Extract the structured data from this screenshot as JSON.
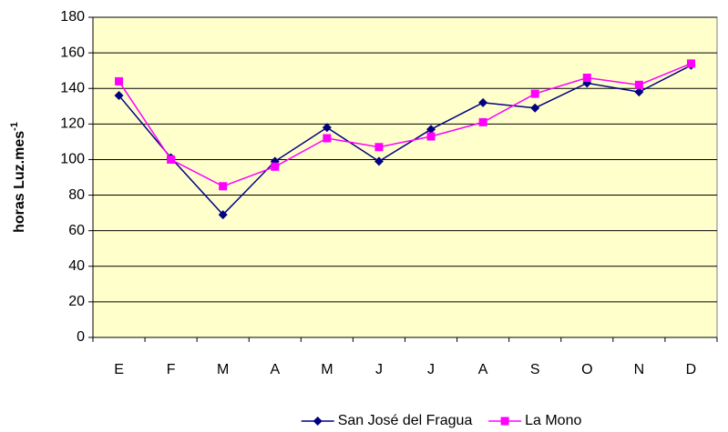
{
  "chart_data": {
    "type": "line",
    "y_label": "horas Luz.mes",
    "y_label_sup": "-1",
    "categories": [
      "E",
      "F",
      "M",
      "A",
      "M",
      "J",
      "J",
      "A",
      "S",
      "O",
      "N",
      "D"
    ],
    "series": [
      {
        "name": "San José del Fragua",
        "color": "#000080",
        "marker": "diamond",
        "values": [
          136,
          101,
          69,
          99,
          118,
          99,
          117,
          132,
          129,
          143,
          138,
          153
        ]
      },
      {
        "name": "La Mono",
        "color": "#ff00ff",
        "marker": "square",
        "values": [
          144,
          100,
          85,
          96,
          112,
          107,
          113,
          121,
          137,
          146,
          142,
          154
        ]
      }
    ],
    "ylim": [
      0,
      180
    ],
    "yticks": [
      0,
      20,
      40,
      60,
      80,
      100,
      120,
      140,
      160,
      180
    ],
    "grid": true,
    "legend": "bottom",
    "plot_background": "#ffffcc"
  }
}
